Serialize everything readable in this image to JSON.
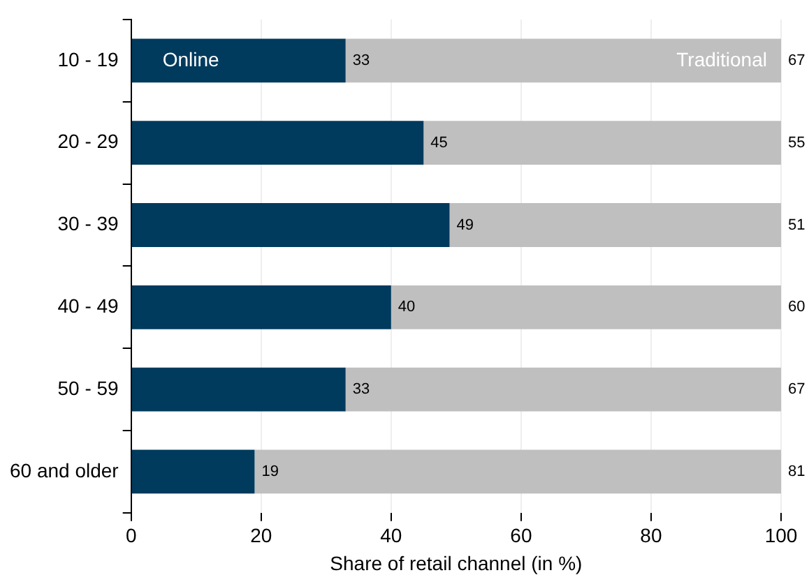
{
  "chart_data": {
    "type": "bar",
    "orientation": "horizontal",
    "stacked": true,
    "xlabel": "Share of retail channel (in %)",
    "categories": [
      "10 - 19",
      "20 - 29",
      "30 - 39",
      "40 - 49",
      "50 - 59",
      "60 and older"
    ],
    "series": [
      {
        "name": "Online",
        "color": "#003a5d",
        "values": [
          33,
          45,
          49,
          40,
          33,
          19
        ]
      },
      {
        "name": "Traditional",
        "color": "#bfbfbf",
        "values": [
          67,
          55,
          51,
          60,
          67,
          81
        ]
      }
    ],
    "xlim": [
      0,
      100
    ],
    "xticks": [
      0,
      20,
      40,
      60,
      80,
      100
    ],
    "grid": "x",
    "legend": false,
    "data_labels": true
  }
}
